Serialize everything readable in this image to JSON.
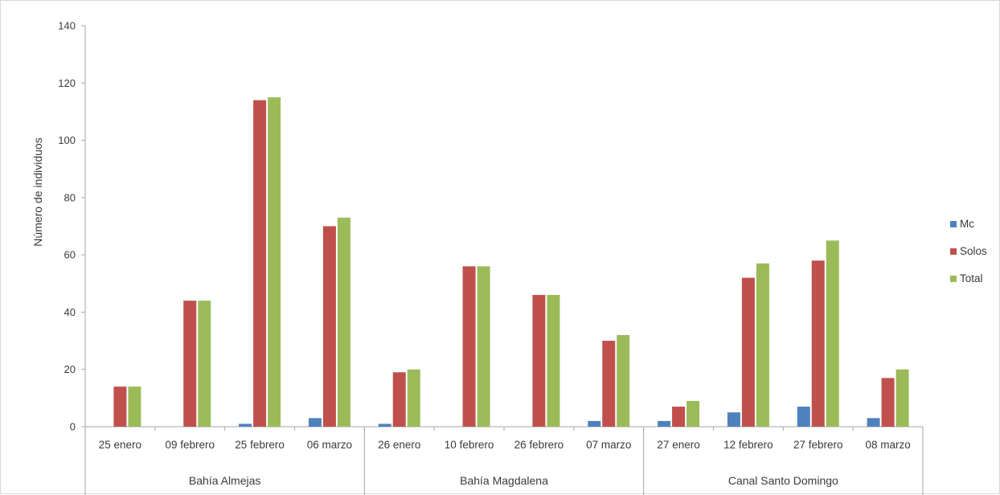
{
  "chart_data": {
    "type": "bar",
    "title": "",
    "xlabel": "",
    "ylabel": "Número de individuos",
    "ylim": [
      0,
      140
    ],
    "yticks": [
      0,
      20,
      40,
      60,
      80,
      100,
      120,
      140
    ],
    "grid": false,
    "legend_position": "right",
    "groups": [
      {
        "name": "Bahía Almejas",
        "categories": [
          "25 enero",
          "09 febrero",
          "25 febrero",
          "06 marzo"
        ]
      },
      {
        "name": "Bahía Magdalena",
        "categories": [
          "26 enero",
          "10 febrero",
          "26 febrero",
          "07 marzo"
        ]
      },
      {
        "name": "Canal Santo Domingo",
        "categories": [
          "27 enero",
          "12 febrero",
          "27 febrero",
          "08 marzo"
        ]
      }
    ],
    "categories": [
      "25 enero",
      "09 febrero",
      "25 febrero",
      "06 marzo",
      "26 enero",
      "10 febrero",
      "26 febrero",
      "07 marzo",
      "27 enero",
      "12 febrero",
      "27 febrero",
      "08 marzo"
    ],
    "series": [
      {
        "name": "Mc",
        "color": "#4f81bd",
        "values": [
          0,
          0,
          1,
          3,
          1,
          0,
          0,
          2,
          2,
          5,
          7,
          3
        ]
      },
      {
        "name": "Solos",
        "color": "#c0504d",
        "values": [
          14,
          44,
          114,
          70,
          19,
          56,
          46,
          30,
          7,
          52,
          58,
          17
        ]
      },
      {
        "name": "Total",
        "color": "#9bbb59",
        "values": [
          14,
          44,
          115,
          73,
          20,
          56,
          46,
          32,
          9,
          57,
          65,
          20
        ]
      }
    ]
  }
}
